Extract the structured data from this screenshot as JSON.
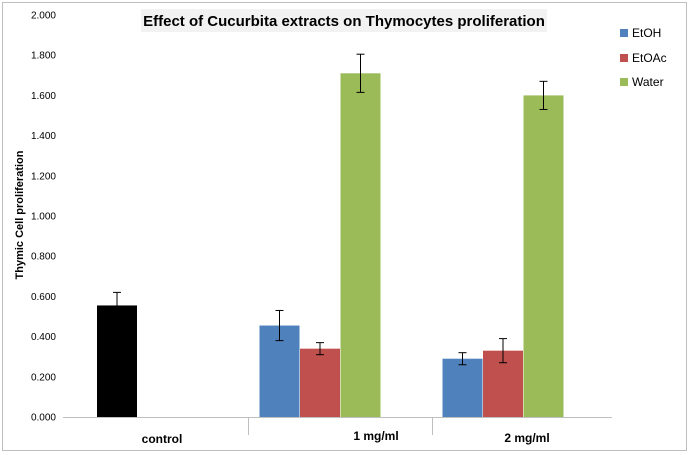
{
  "chart_data": {
    "type": "bar",
    "title": "Effect of Cucurbita extracts on Thymocytes proliferation",
    "xlabel": "",
    "ylabel": "Thymic Cell proliferation",
    "ylim": [
      0,
      2
    ],
    "yticks": [
      "0.000",
      "0.200",
      "0.400",
      "0.600",
      "0.800",
      "1.000",
      "1.200",
      "1.400",
      "1.600",
      "1.800",
      "2.000"
    ],
    "categories": [
      "control",
      "1 mg/ml",
      "2 mg/ml"
    ],
    "control": {
      "value": 0.555,
      "error": 0.065,
      "color": "#000000"
    },
    "series": [
      {
        "name": "EtOH",
        "color": "#4F81BD",
        "values": [
          null,
          0.455,
          0.29
        ],
        "errors": [
          null,
          0.075,
          0.03
        ]
      },
      {
        "name": "EtOAc",
        "color": "#C0504D",
        "values": [
          null,
          0.34,
          0.33
        ],
        "errors": [
          null,
          0.03,
          0.06
        ]
      },
      {
        "name": "Water",
        "color": "#9BBB59",
        "values": [
          null,
          1.71,
          1.6
        ],
        "errors": [
          null,
          0.095,
          0.07
        ]
      }
    ],
    "legend_position": "right",
    "grid": false
  }
}
